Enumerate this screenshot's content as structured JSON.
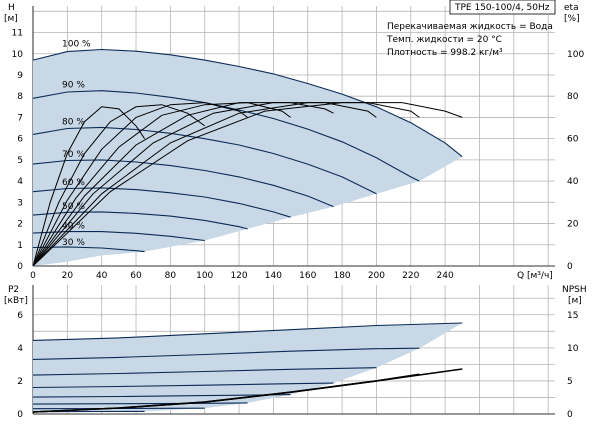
{
  "chart_data": [
    {
      "type": "line",
      "title": "TPE 150-100/4, 50Hz",
      "ylabel": "H",
      "yunit": "[м]",
      "y2label": "eta",
      "y2unit": "[%]",
      "xlabel": "Q",
      "xunit": "[м³/ч]",
      "xlim": [
        0,
        250
      ],
      "ylim": [
        0,
        12
      ],
      "y2lim": [
        0,
        125
      ],
      "grid": true,
      "xticks": [
        "0",
        "20",
        "40",
        "60",
        "80",
        "100",
        "120",
        "140",
        "160",
        "180",
        "200",
        "220",
        "240"
      ],
      "yticks": [
        "0",
        "1",
        "2",
        "3",
        "4",
        "5",
        "6",
        "7",
        "8",
        "9",
        "10",
        "11"
      ],
      "y2ticks": [
        "0",
        "20",
        "40",
        "60",
        "80",
        "100"
      ],
      "info": [
        "Перекачиваемая жидкость = Вода",
        "Темп. жидкости = 20 °C",
        "Плотность = 998.2 кг/м³"
      ],
      "speed_labels": [
        "100 %",
        "90 %",
        "80 %",
        "70 %",
        "60 %",
        "50 %",
        "40 %",
        "30 %"
      ],
      "head_series": [
        {
          "name": "100 %",
          "x": [
            0,
            20,
            40,
            60,
            80,
            100,
            120,
            140,
            160,
            180,
            200,
            220,
            240,
            250
          ],
          "y": [
            9.7,
            10.1,
            10.2,
            10.12,
            9.95,
            9.7,
            9.4,
            9.05,
            8.6,
            8.1,
            7.5,
            6.75,
            5.8,
            5.15
          ]
        },
        {
          "name": "90 %",
          "x": [
            0,
            20,
            40,
            60,
            80,
            100,
            120,
            140,
            160,
            180,
            200,
            220,
            225
          ],
          "y": [
            7.9,
            8.2,
            8.26,
            8.15,
            7.95,
            7.7,
            7.35,
            6.95,
            6.45,
            5.85,
            5.1,
            4.2,
            4.0
          ]
        },
        {
          "name": "80 %",
          "x": [
            0,
            20,
            40,
            60,
            80,
            100,
            120,
            140,
            160,
            180,
            200
          ],
          "y": [
            6.2,
            6.48,
            6.53,
            6.43,
            6.25,
            6.0,
            5.7,
            5.3,
            4.8,
            4.2,
            3.4
          ]
        },
        {
          "name": "70 %",
          "x": [
            0,
            20,
            40,
            60,
            80,
            100,
            120,
            140,
            160,
            175
          ],
          "y": [
            4.8,
            4.97,
            5.0,
            4.9,
            4.73,
            4.5,
            4.2,
            3.8,
            3.3,
            2.8
          ]
        },
        {
          "name": "60 %",
          "x": [
            0,
            20,
            40,
            60,
            80,
            100,
            120,
            140,
            150
          ],
          "y": [
            3.5,
            3.65,
            3.68,
            3.6,
            3.45,
            3.25,
            2.95,
            2.55,
            2.3
          ]
        },
        {
          "name": "50 %",
          "x": [
            0,
            20,
            40,
            60,
            80,
            100,
            120,
            125
          ],
          "y": [
            2.4,
            2.53,
            2.55,
            2.48,
            2.35,
            2.15,
            1.85,
            1.75
          ]
        },
        {
          "name": "40 %",
          "x": [
            0,
            20,
            40,
            60,
            80,
            100
          ],
          "y": [
            1.55,
            1.62,
            1.62,
            1.54,
            1.4,
            1.2
          ]
        },
        {
          "name": "30 %",
          "x": [
            0,
            20,
            40,
            60,
            65
          ],
          "y": [
            0.87,
            0.9,
            0.85,
            0.72,
            0.68
          ]
        }
      ],
      "eta_series": [
        {
          "x": [
            0,
            10,
            20,
            30,
            40,
            50,
            60,
            65
          ],
          "y": [
            0,
            30,
            53,
            68,
            75,
            74,
            66,
            60
          ]
        },
        {
          "x": [
            0,
            15,
            30,
            45,
            60,
            75,
            90,
            100
          ],
          "y": [
            0,
            30,
            53,
            68,
            75,
            76,
            72,
            66
          ]
        },
        {
          "x": [
            0,
            20,
            40,
            60,
            80,
            100,
            120,
            125
          ],
          "y": [
            0,
            31,
            55,
            70,
            76,
            77,
            73,
            70
          ]
        },
        {
          "x": [
            0,
            25,
            50,
            75,
            100,
            125,
            145,
            150
          ],
          "y": [
            0,
            32,
            56,
            71,
            76,
            77,
            73,
            70
          ]
        },
        {
          "x": [
            0,
            30,
            60,
            90,
            120,
            150,
            170,
            175
          ],
          "y": [
            0,
            33,
            57,
            71,
            77,
            77,
            74,
            72
          ]
        },
        {
          "x": [
            0,
            35,
            70,
            105,
            140,
            170,
            195,
            200
          ],
          "y": [
            0,
            34,
            58,
            72,
            77,
            77,
            73,
            70
          ]
        },
        {
          "x": [
            0,
            40,
            80,
            120,
            160,
            195,
            220,
            225
          ],
          "y": [
            0,
            34,
            58,
            72,
            77,
            77,
            73,
            70
          ]
        },
        {
          "x": [
            0,
            45,
            90,
            135,
            180,
            215,
            240,
            250
          ],
          "y": [
            0,
            35,
            59,
            73,
            77,
            77,
            73,
            70
          ]
        }
      ],
      "head_envelope": {
        "x": [
          0,
          20,
          40,
          60,
          80,
          100,
          120,
          140,
          160,
          180,
          200,
          220,
          240,
          250,
          250,
          225,
          200,
          175,
          150,
          125,
          100,
          65,
          40,
          20,
          0
        ],
        "y": [
          9.7,
          10.1,
          10.2,
          10.12,
          9.95,
          9.7,
          9.4,
          9.05,
          8.6,
          8.1,
          7.5,
          6.75,
          5.8,
          5.15,
          5.15,
          4.0,
          3.4,
          2.8,
          2.3,
          1.75,
          1.2,
          0.68,
          0.5,
          0.2,
          0
        ]
      }
    },
    {
      "type": "line",
      "ylabel": "P2",
      "yunit": "[кВт]",
      "y2label": "NPSH",
      "y2unit": "[м]",
      "xlim": [
        0,
        250
      ],
      "ylim": [
        0,
        7
      ],
      "y2lim": [
        0,
        17.5
      ],
      "grid": true,
      "yticks": [
        "0",
        "2",
        "4",
        "6"
      ],
      "y2ticks": [
        "0",
        "5",
        "10",
        "15"
      ],
      "power_series": [
        {
          "name": "100 %",
          "x": [
            0,
            50,
            100,
            150,
            200,
            250
          ],
          "y": [
            4.45,
            4.6,
            4.85,
            5.1,
            5.35,
            5.5
          ]
        },
        {
          "name": "90 %",
          "x": [
            0,
            50,
            100,
            150,
            200,
            225
          ],
          "y": [
            3.3,
            3.42,
            3.6,
            3.8,
            3.95,
            3.98
          ]
        },
        {
          "name": "80 %",
          "x": [
            0,
            50,
            100,
            150,
            200
          ],
          "y": [
            2.35,
            2.45,
            2.57,
            2.7,
            2.8
          ]
        },
        {
          "name": "70 %",
          "x": [
            0,
            50,
            100,
            150,
            175
          ],
          "y": [
            1.6,
            1.66,
            1.74,
            1.83,
            1.87
          ]
        },
        {
          "name": "60 %",
          "x": [
            0,
            50,
            100,
            150
          ],
          "y": [
            1.02,
            1.06,
            1.11,
            1.17
          ]
        },
        {
          "name": "50 %",
          "x": [
            0,
            50,
            100,
            125
          ],
          "y": [
            0.6,
            0.62,
            0.65,
            0.67
          ]
        },
        {
          "name": "40 %",
          "x": [
            0,
            50,
            100
          ],
          "y": [
            0.32,
            0.33,
            0.35
          ]
        },
        {
          "name": "30 %",
          "x": [
            0,
            30,
            65
          ],
          "y": [
            0.14,
            0.15,
            0.16
          ]
        }
      ],
      "npsh_series": [
        {
          "x": [
            0,
            50,
            100,
            150,
            200,
            250
          ],
          "y": [
            0.3,
            0.9,
            1.8,
            3.3,
            5.0,
            6.8
          ]
        },
        {
          "x": [
            0,
            50,
            100,
            150,
            200,
            225
          ],
          "y": [
            0.3,
            0.9,
            1.8,
            3.3,
            5.0,
            6.0
          ]
        }
      ],
      "power_envelope": {
        "x": [
          0,
          50,
          100,
          150,
          200,
          250,
          250,
          225,
          200,
          175,
          150,
          125,
          100,
          65,
          30,
          0
        ],
        "y": [
          4.45,
          4.6,
          4.85,
          5.1,
          5.35,
          5.5,
          5.5,
          3.98,
          2.8,
          1.87,
          1.17,
          0.67,
          0.35,
          0.16,
          0.1,
          0.1
        ]
      }
    }
  ]
}
